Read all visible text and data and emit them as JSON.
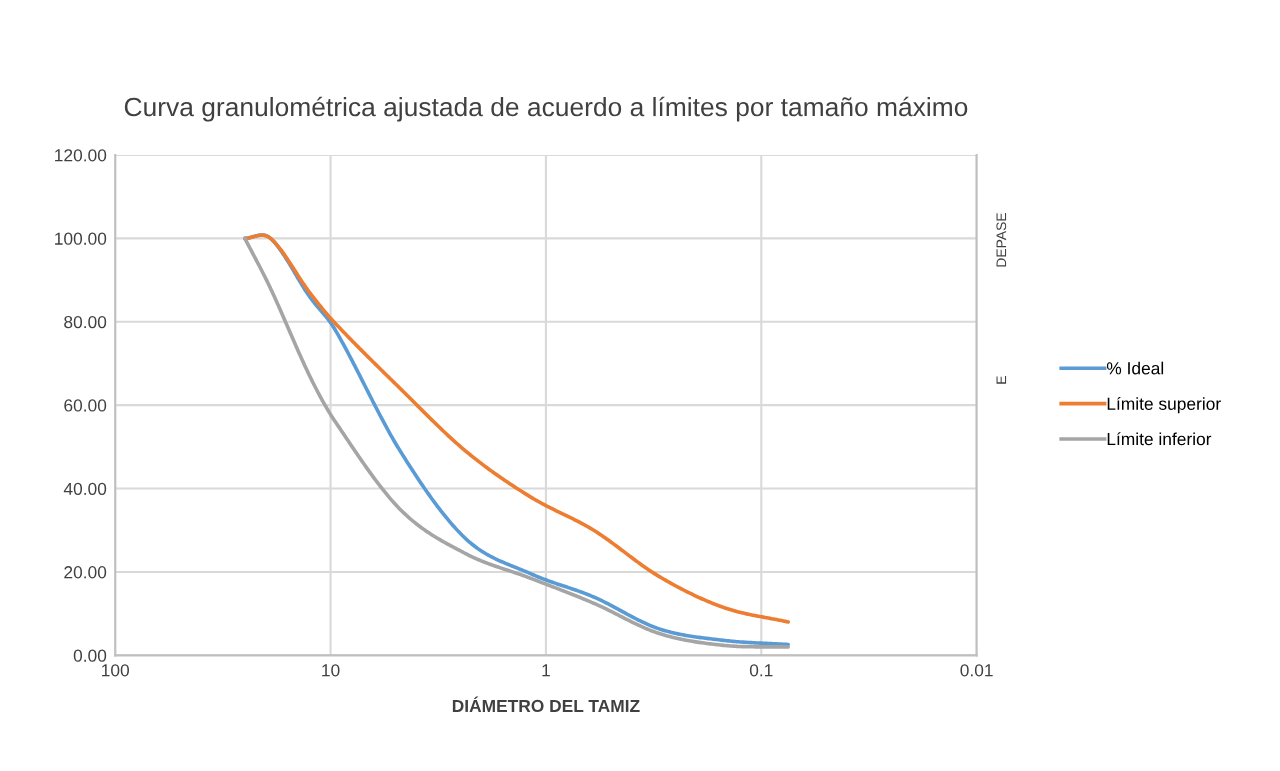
{
  "chart_data": {
    "type": "line",
    "title": "Curva granulométrica ajustada de acuerdo a límites por tamaño máximo",
    "xlabel": "DIÁMETRO DEL TAMIZ",
    "x": [
      25,
      19,
      12.5,
      9.5,
      4.75,
      2.36,
      1.18,
      0.6,
      0.3,
      0.15,
      0.075
    ],
    "series": [
      {
        "name": "% Ideal",
        "color": "#5b9bd5",
        "values": [
          100,
          100,
          86,
          78,
          49,
          28,
          19.6,
          14,
          6.4,
          3.6,
          2.6
        ]
      },
      {
        "name": "Límite superior",
        "color": "#ed7d31",
        "values": [
          100,
          100,
          87,
          79.6,
          64,
          49,
          38,
          30,
          19,
          11.5,
          8
        ]
      },
      {
        "name": "Límite inferior",
        "color": "#a5a5a5",
        "values": [
          100,
          88,
          67,
          56,
          35,
          24.4,
          18.5,
          12.5,
          5.3,
          2.4,
          2
        ]
      }
    ],
    "log": "x",
    "xlim": [
      100,
      0.01
    ],
    "xticks": [
      100,
      10,
      1,
      0.1,
      0.01
    ],
    "ylim": [
      0,
      120
    ],
    "yticks": [
      {
        "value": 0,
        "label": "0.00"
      },
      {
        "value": 20,
        "label": "20.00"
      },
      {
        "value": 40,
        "label": "40.00"
      },
      {
        "value": 60,
        "label": "60.00"
      },
      {
        "value": 80,
        "label": "80.00"
      },
      {
        "value": 100,
        "label": "100.00"
      },
      {
        "value": 120,
        "label": "120.00"
      }
    ],
    "grid": true,
    "legend": "right",
    "marker": "none",
    "line_style": "solid",
    "annotations": [
      "DEPASE",
      "E"
    ]
  }
}
